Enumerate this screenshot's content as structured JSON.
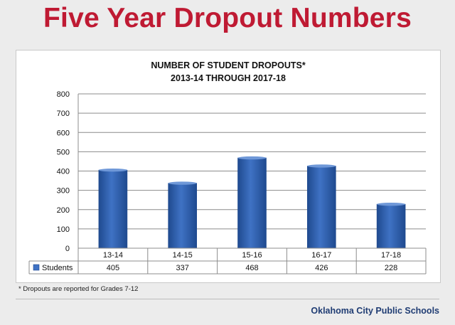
{
  "slide": {
    "title": "Five Year Dropout Numbers",
    "footnote": "* Dropouts are reported for Grades 7-12",
    "organization": "Oklahoma City Public Schools"
  },
  "colors": {
    "title": "#bf1a33",
    "bar": "#3f72c4",
    "bar_dark": "#1f4a8f",
    "organization": "#1f3c73"
  },
  "chart_data": {
    "type": "bar",
    "title_lines": [
      "NUMBER OF STUDENT DROPOUTS*",
      "2013-14 THROUGH 2017-18"
    ],
    "categories": [
      "13-14",
      "14-15",
      "15-16",
      "16-17",
      "17-18"
    ],
    "series": [
      {
        "name": "Students",
        "values": [
          405,
          337,
          468,
          426,
          228
        ]
      }
    ],
    "ylim": [
      0,
      800
    ],
    "yticks": [
      0,
      100,
      200,
      300,
      400,
      500,
      600,
      700,
      800
    ],
    "grid": true,
    "legend": "data-table"
  }
}
